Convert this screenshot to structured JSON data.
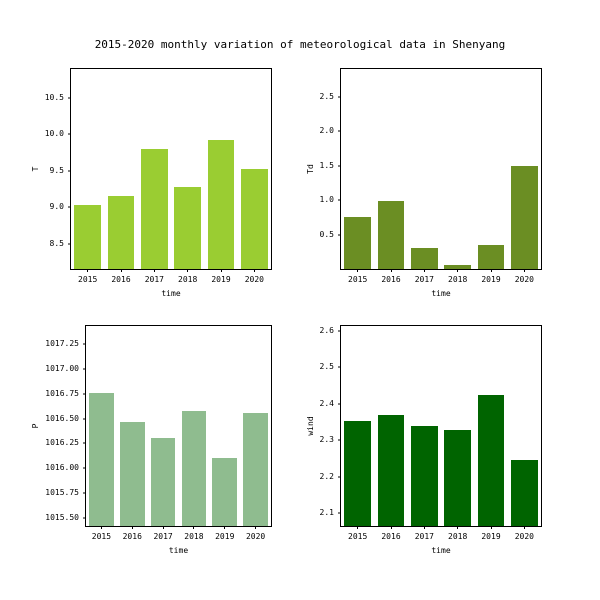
{
  "figure": {
    "title": "2015-2020 monthly variation of meteorological data in Shenyang"
  },
  "chart_data": [
    {
      "type": "bar",
      "title": "",
      "ylabel": "T",
      "xlabel": "time",
      "categories": [
        "2015",
        "2016",
        "2017",
        "2018",
        "2019",
        "2020"
      ],
      "values": [
        9.03,
        9.15,
        9.8,
        9.28,
        9.93,
        9.52
      ],
      "ytick_values": [
        8.5,
        9.0,
        9.5,
        10.0,
        10.5
      ],
      "ytick_labels": [
        "8.5",
        "9.0",
        "9.5",
        "10.0",
        "10.5"
      ],
      "ylim": [
        8.15,
        10.9
      ],
      "bar_color": "#9acd32",
      "grid": false,
      "legend": null
    },
    {
      "type": "bar",
      "title": "",
      "ylabel": "Td",
      "xlabel": "time",
      "categories": [
        "2015",
        "2016",
        "2017",
        "2018",
        "2019",
        "2020"
      ],
      "values": [
        0.75,
        0.98,
        0.3,
        0.06,
        0.35,
        1.5
      ],
      "ytick_values": [
        0.5,
        1.0,
        1.5,
        2.0,
        2.5
      ],
      "ytick_labels": [
        "0.5",
        "1.0",
        "1.5",
        "2.0",
        "2.5"
      ],
      "ylim": [
        0.0,
        2.9
      ],
      "bar_color": "#6b8e23",
      "grid": false,
      "legend": null
    },
    {
      "type": "bar",
      "title": "",
      "ylabel": "P",
      "xlabel": "time",
      "categories": [
        "2015",
        "2016",
        "2017",
        "2018",
        "2019",
        "2020"
      ],
      "values": [
        1016.76,
        1016.47,
        1016.3,
        1016.58,
        1016.1,
        1016.56
      ],
      "ytick_values": [
        1015.5,
        1015.75,
        1016.0,
        1016.25,
        1016.5,
        1016.75,
        1017.0,
        1017.25
      ],
      "ytick_labels": [
        "1015.50",
        "1015.75",
        "1016.00",
        "1016.25",
        "1016.50",
        "1016.75",
        "1017.00",
        "1017.25"
      ],
      "ylim": [
        1015.42,
        1017.43
      ],
      "bar_color": "#8fbc8f",
      "grid": false,
      "legend": null
    },
    {
      "type": "bar",
      "title": "",
      "ylabel": "wind",
      "xlabel": "time",
      "categories": [
        "2015",
        "2016",
        "2017",
        "2018",
        "2019",
        "2020"
      ],
      "values": [
        2.352,
        2.37,
        2.338,
        2.327,
        2.423,
        2.245
      ],
      "ytick_values": [
        2.1,
        2.2,
        2.3,
        2.4,
        2.5,
        2.6
      ],
      "ytick_labels": [
        "2.1",
        "2.2",
        "2.3",
        "2.4",
        "2.5",
        "2.6"
      ],
      "ylim": [
        2.064,
        2.614
      ],
      "bar_color": "#006400",
      "grid": false,
      "legend": null
    }
  ]
}
